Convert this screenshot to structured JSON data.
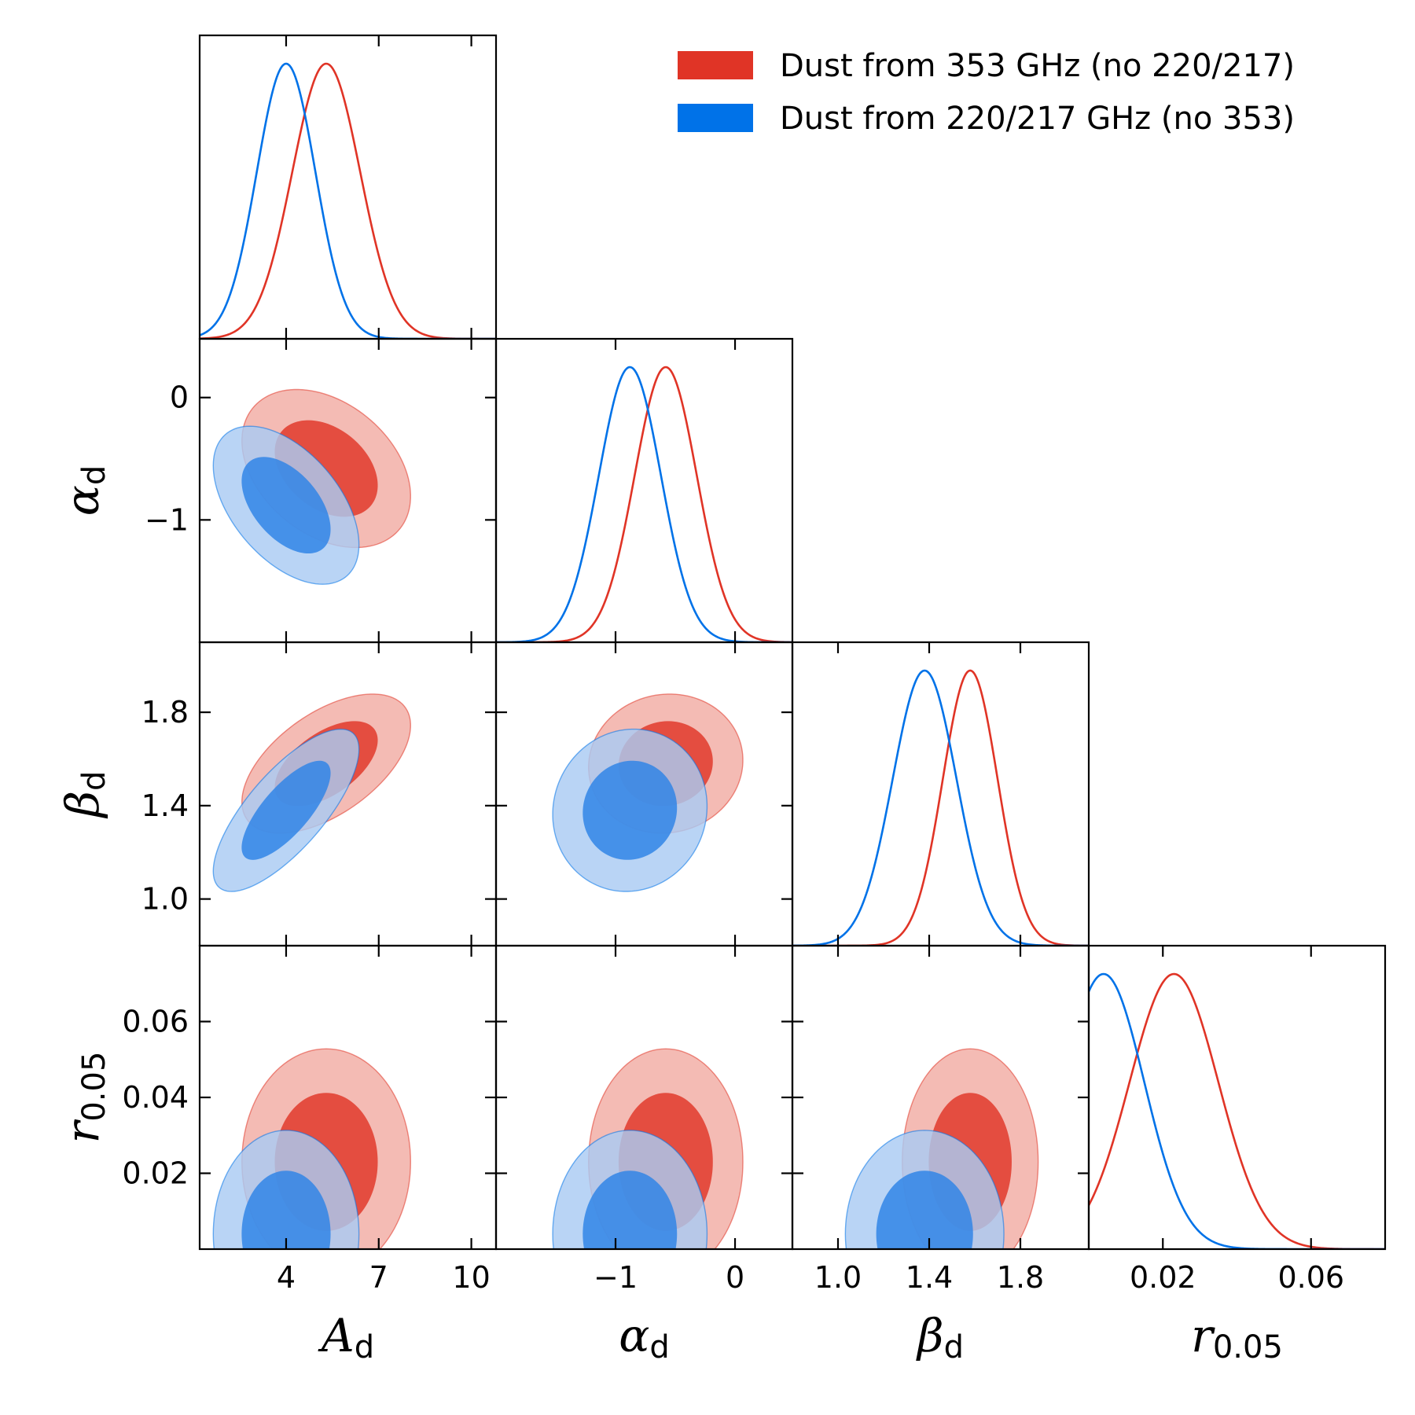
{
  "chart_data": {
    "type": "triangle-corner-plot",
    "parameters": [
      {
        "key": "Ad",
        "symbol": "A",
        "sub": "d",
        "range": [
          1.2,
          10.8
        ],
        "ticks": [
          {
            "v": 4,
            "label": "4"
          },
          {
            "v": 7,
            "label": "7"
          },
          {
            "v": 10,
            "label": "10"
          }
        ]
      },
      {
        "key": "alpha_d",
        "symbol": "α",
        "sub": "d",
        "range": [
          -2.0,
          0.48
        ],
        "ticks": [
          {
            "v": -1,
            "label": "−1"
          },
          {
            "v": 0,
            "label": "0"
          }
        ]
      },
      {
        "key": "beta_d",
        "symbol": "β",
        "sub": "d",
        "range": [
          0.8,
          2.1
        ],
        "ticks": [
          {
            "v": 1.0,
            "label": "1.0"
          },
          {
            "v": 1.4,
            "label": "1.4"
          },
          {
            "v": 1.8,
            "label": "1.8"
          }
        ]
      },
      {
        "key": "r",
        "symbol": "r",
        "sub": "0.05",
        "range": [
          0.0,
          0.08
        ],
        "ticks": [
          {
            "v": 0.02,
            "label": "0.02"
          },
          {
            "v": 0.06,
            "label": "0.06"
          }
        ],
        "ticks_y": [
          {
            "v": 0.02,
            "label": "0.02"
          },
          {
            "v": 0.04,
            "label": "0.04"
          },
          {
            "v": 0.06,
            "label": "0.06"
          }
        ]
      }
    ],
    "series": [
      {
        "name": "Dust from 353 GHz (no 220/217)",
        "color": "#e03426",
        "fill_inner": "#e03426",
        "fill_outer": "#f2aca4",
        "mean": [
          5.3,
          -0.58,
          1.58,
          0.023
        ],
        "sigma": [
          1.1,
          0.26,
          0.12,
          0.012
        ],
        "corr": [
          [
            1,
            -0.35,
            0.55,
            0.0
          ],
          [
            -0.35,
            1,
            0.05,
            0.0
          ],
          [
            0.55,
            0.05,
            1,
            0.0
          ],
          [
            0.0,
            0.0,
            0.0,
            1
          ]
        ]
      },
      {
        "name": "Dust from 220/217 GHz (no 353)",
        "color": "#0072e8",
        "fill_inner": "#2c82e6",
        "fill_outer": "#a9cbf3",
        "mean": [
          4.0,
          -0.88,
          1.38,
          0.004
        ],
        "sigma": [
          0.95,
          0.26,
          0.14,
          0.011
        ],
        "corr": [
          [
            1,
            -0.5,
            0.75,
            0.0
          ],
          [
            -0.5,
            1,
            0.05,
            0.0
          ],
          [
            0.75,
            0.05,
            1,
            0.0
          ],
          [
            0.0,
            0.0,
            0.0,
            1
          ]
        ]
      }
    ],
    "legend": {
      "position": "top-right"
    }
  }
}
